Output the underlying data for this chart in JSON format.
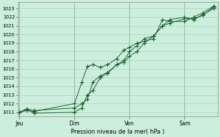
{
  "background_color": "#cceedd",
  "grid_color": "#aaccbb",
  "line_color": "#1a5c2a",
  "xlabel": "Pression niveau de la mer( hPa )",
  "ylim": [
    1010.5,
    1023.7
  ],
  "yticks": [
    1011,
    1012,
    1013,
    1014,
    1015,
    1016,
    1017,
    1018,
    1019,
    1020,
    1021,
    1022,
    1023
  ],
  "day_labels": [
    "Jeu",
    "Dim",
    "Ven",
    "Sam"
  ],
  "day_positions": [
    0.0,
    3.0,
    6.0,
    9.0
  ],
  "xlim": [
    -0.1,
    10.8
  ],
  "series1_x": [
    0.0,
    0.4,
    0.8,
    3.0,
    3.4,
    3.7,
    4.0,
    4.4,
    4.8,
    5.3,
    5.7,
    6.0,
    6.4,
    6.8,
    7.3,
    7.8,
    8.2,
    9.0,
    9.5,
    10.0,
    10.6
  ],
  "series1_y": [
    1011.0,
    1011.2,
    1011.1,
    1012.0,
    1014.5,
    1016.3,
    1016.5,
    1016.2,
    1016.5,
    1017.2,
    1018.2,
    1018.5,
    1019.0,
    1019.2,
    1019.5,
    1021.7,
    1021.5,
    1021.5,
    1022.0,
    1022.5,
    1023.3
  ],
  "series2_x": [
    0.0,
    0.4,
    0.8,
    3.0,
    3.4,
    3.7,
    4.0,
    4.4,
    4.8,
    5.3,
    5.7,
    6.0,
    6.4,
    6.8,
    7.3,
    7.8,
    8.2,
    9.0,
    9.5,
    10.0,
    10.6
  ],
  "series2_y": [
    1011.0,
    1011.3,
    1010.9,
    1011.0,
    1011.5,
    1013.0,
    1013.5,
    1015.0,
    1015.5,
    1016.5,
    1016.8,
    1017.5,
    1018.0,
    1019.0,
    1019.8,
    1021.0,
    1021.7,
    1022.0,
    1021.7,
    1022.3,
    1023.0
  ],
  "series3_x": [
    0.0,
    0.4,
    0.8,
    3.0,
    3.4,
    3.7,
    4.0,
    4.4,
    4.8,
    5.3,
    5.7,
    6.0,
    6.4,
    6.8,
    7.3,
    7.8,
    8.2,
    9.0,
    9.5,
    10.0,
    10.6
  ],
  "series3_y": [
    1011.0,
    1011.4,
    1011.2,
    1011.5,
    1012.0,
    1012.5,
    1014.5,
    1015.2,
    1015.6,
    1016.5,
    1017.0,
    1018.0,
    1018.7,
    1019.5,
    1019.8,
    1021.0,
    1021.3,
    1021.8,
    1021.8,
    1022.2,
    1023.2
  ]
}
